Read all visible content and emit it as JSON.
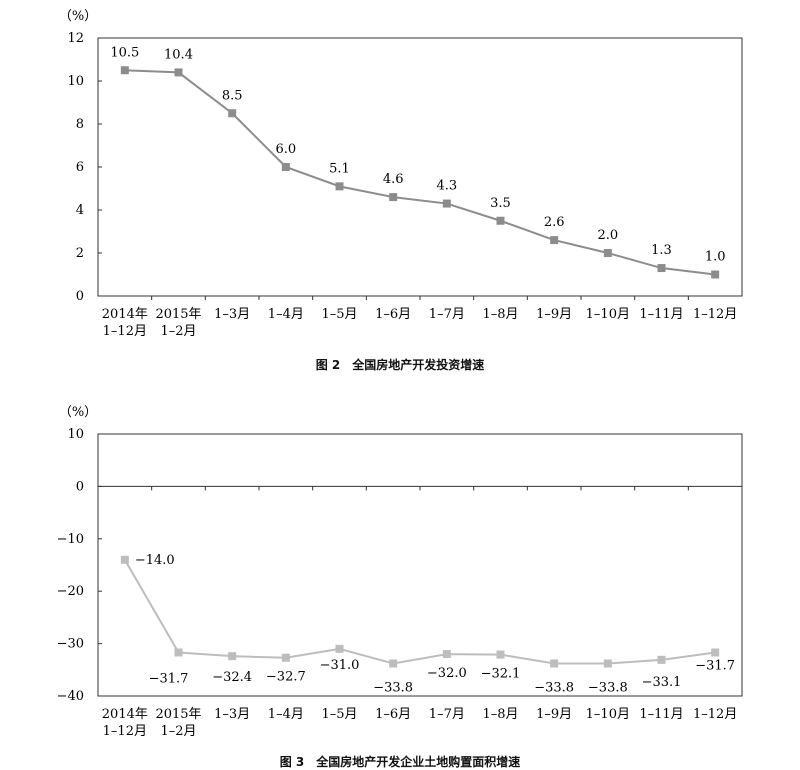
{
  "chart_data": [
    {
      "type": "line",
      "title": "图 2　全国房地产开发投资增速",
      "unit": "（%）",
      "categories": [
        [
          "2014年",
          "1–12月"
        ],
        [
          "2015年",
          "1–2月"
        ],
        [
          "1–3月"
        ],
        [
          "1–4月"
        ],
        [
          "1–5月"
        ],
        [
          "1–6月"
        ],
        [
          "1–7月"
        ],
        [
          "1–8月"
        ],
        [
          "1–9月"
        ],
        [
          "1–10月"
        ],
        [
          "1–11月"
        ],
        [
          "1–12月"
        ]
      ],
      "values": [
        10.5,
        10.4,
        8.5,
        6.0,
        5.1,
        4.6,
        4.3,
        3.5,
        2.6,
        2.0,
        1.3,
        1.0
      ],
      "labels": [
        "10.5",
        "10.4",
        "8.5",
        "6.0",
        "5.1",
        "4.6",
        "4.3",
        "3.5",
        "2.6",
        "2.0",
        "1.3",
        "1.0"
      ],
      "ylim": [
        0,
        12
      ],
      "yticks": [
        0,
        2,
        4,
        6,
        8,
        10,
        12
      ],
      "color": "#8c8c8c",
      "marker": "square",
      "grid": false,
      "legend": "none"
    },
    {
      "type": "line",
      "title": "图 3　全国房地产开发企业土地购置面积增速",
      "unit": "（%）",
      "categories": [
        [
          "2014年",
          "1–12月"
        ],
        [
          "2015年",
          "1–2月"
        ],
        [
          "1–3月"
        ],
        [
          "1–4月"
        ],
        [
          "1–5月"
        ],
        [
          "1–6月"
        ],
        [
          "1–7月"
        ],
        [
          "1–8月"
        ],
        [
          "1–9月"
        ],
        [
          "1–10月"
        ],
        [
          "1–11月"
        ],
        [
          "1–12月"
        ]
      ],
      "values": [
        -14.0,
        -31.7,
        -32.4,
        -32.7,
        -31.0,
        -33.8,
        -32.0,
        -32.1,
        -33.8,
        -33.8,
        -33.1,
        -31.7
      ],
      "labels": [
        "−14.0",
        "−31.7",
        "−32.4",
        "−32.7",
        "−31.0",
        "−33.8",
        "−32.0",
        "−32.1",
        "−33.8",
        "−33.8",
        "−33.1",
        "−31.7"
      ],
      "ylim": [
        -40,
        10
      ],
      "yticks": [
        10,
        0,
        -10,
        -20,
        -30,
        -40
      ],
      "ytick_labels": [
        "10",
        "0",
        "−10",
        "−20",
        "−30",
        "−40"
      ],
      "color": "#bdbdbd",
      "marker": "square",
      "grid": false,
      "legend": "none"
    }
  ]
}
